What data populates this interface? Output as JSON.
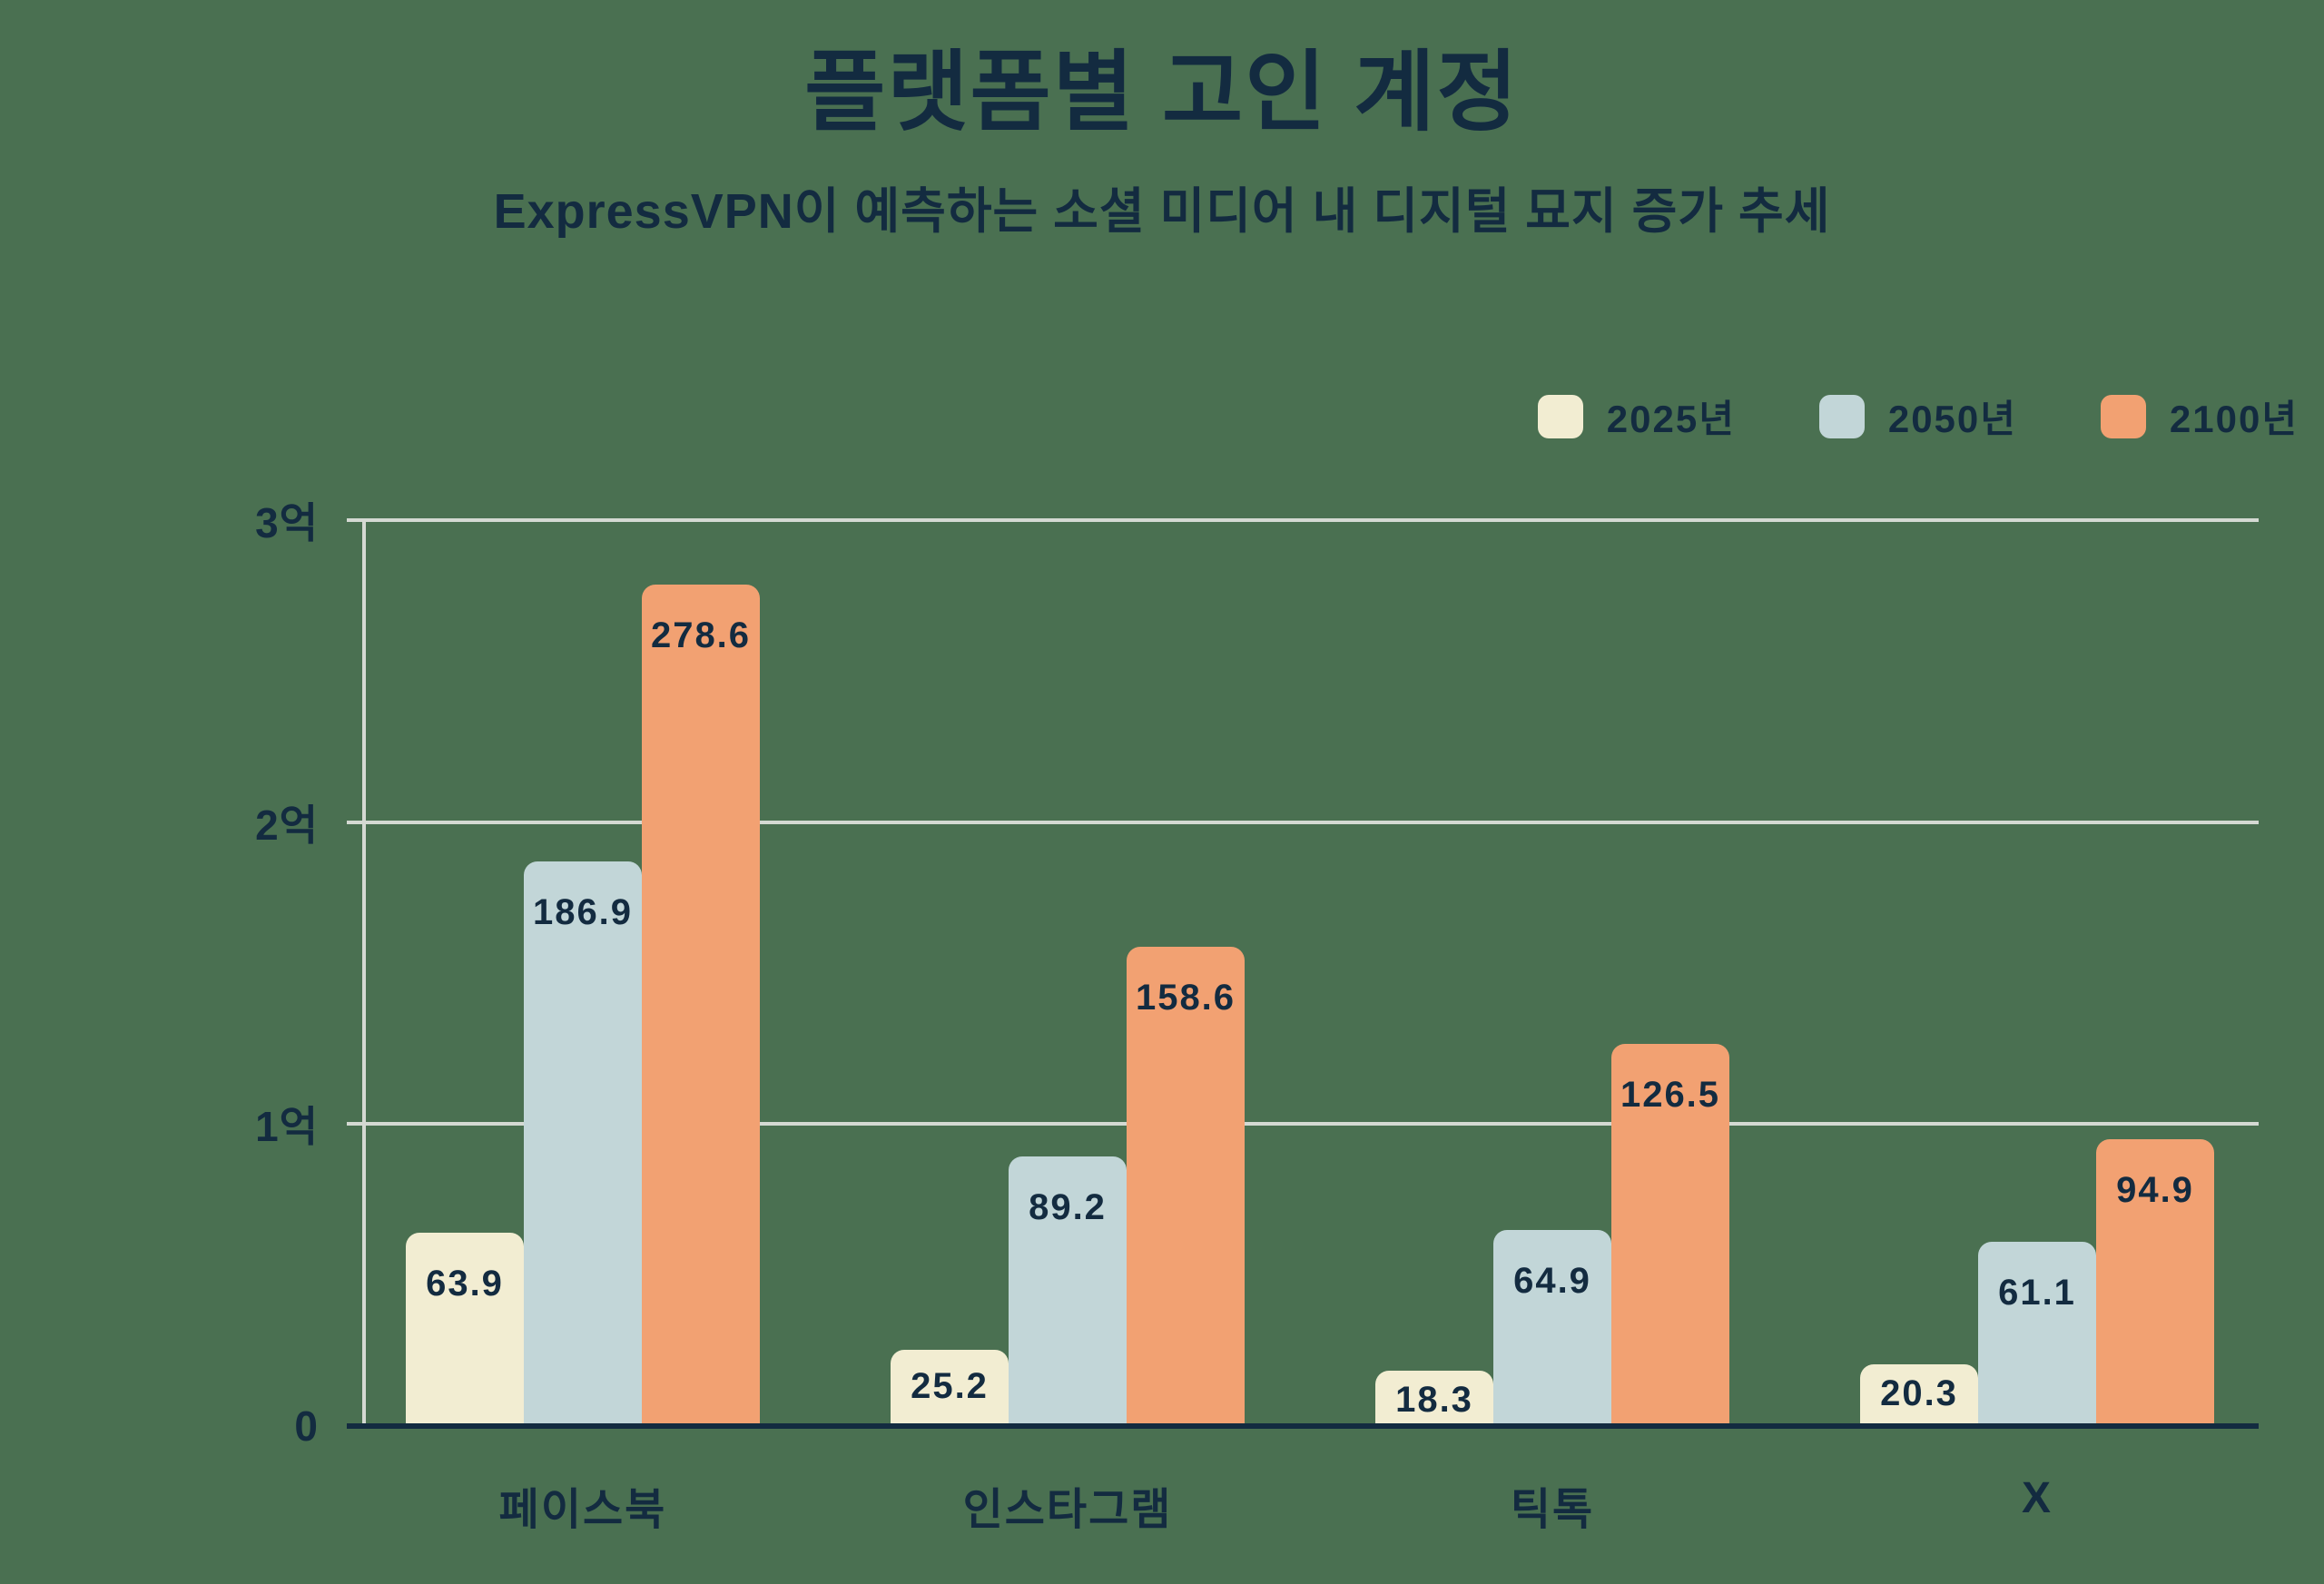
{
  "title": "플랫폼별 고인 계정",
  "subtitle": "ExpressVPN이 예측하는 소셜 미디어 내 디지털 묘지 증가 추세",
  "colors": {
    "background": "#4A7051",
    "text": "#132B40",
    "gridline": "#D4D9D2",
    "axis": "#132B40",
    "series_2025": "#F2EDD2",
    "series_2050": "#C2D6D8",
    "series_2100": "#F2A172"
  },
  "legend": {
    "items": [
      {
        "label": "2025년",
        "color": "#F2EDD2"
      },
      {
        "label": "2050년",
        "color": "#C2D6D8"
      },
      {
        "label": "2100년",
        "color": "#F2A172"
      }
    ]
  },
  "chart_data": {
    "type": "bar",
    "title": "플랫폼별 고인 계정",
    "subtitle": "ExpressVPN이 예측하는 소셜 미디어 내 디지털 묘지 증가 추세",
    "categories": [
      "페이스북",
      "인스타그램",
      "틱톡",
      "X"
    ],
    "series": [
      {
        "name": "2025년",
        "color": "#F2EDD2",
        "values": [
          63.9,
          25.2,
          18.3,
          20.3
        ]
      },
      {
        "name": "2050년",
        "color": "#C2D6D8",
        "values": [
          186.9,
          89.2,
          64.9,
          61.1
        ]
      },
      {
        "name": "2100년",
        "color": "#F2A172",
        "values": [
          278.6,
          158.6,
          126.5,
          94.9
        ]
      }
    ],
    "ylim": [
      0,
      300
    ],
    "y_ticks": [
      {
        "value": 0,
        "label": "0"
      },
      {
        "value": 100,
        "label": "1억"
      },
      {
        "value": 200,
        "label": "2억"
      },
      {
        "value": 300,
        "label": "3억"
      }
    ],
    "grid": true,
    "legend_position": "top-right",
    "xlabel": "",
    "ylabel": ""
  }
}
